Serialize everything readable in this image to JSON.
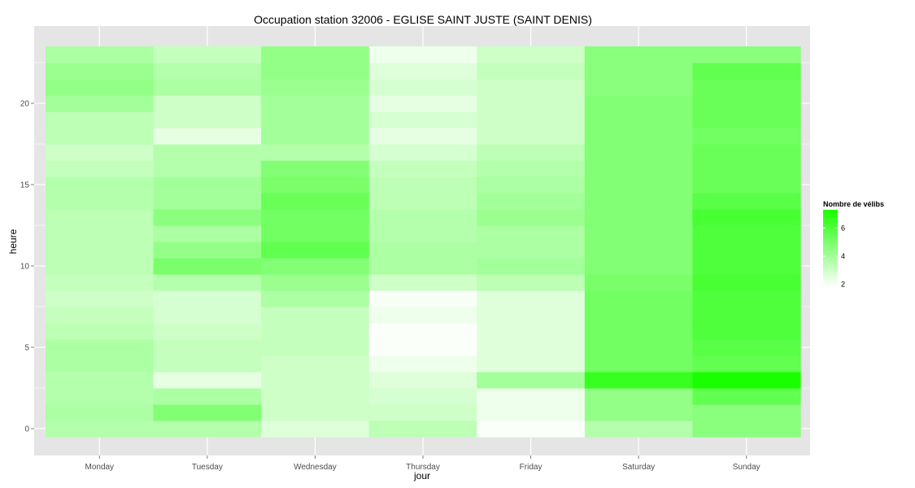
{
  "chart_data": {
    "type": "heatmap",
    "title": "Occupation station 32006 - EGLISE SAINT JUSTE (SAINT DENIS)",
    "xlabel": "jour",
    "ylabel": "heure",
    "x_categories": [
      "Monday",
      "Tuesday",
      "Wednesday",
      "Thursday",
      "Friday",
      "Saturday",
      "Sunday"
    ],
    "y_hours": [
      0,
      1,
      2,
      3,
      4,
      5,
      6,
      7,
      8,
      9,
      10,
      11,
      12,
      13,
      14,
      15,
      16,
      17,
      18,
      19,
      20,
      21,
      22,
      23
    ],
    "y_ticks": [
      0,
      5,
      10,
      15,
      20
    ],
    "y_range": [
      -0.5,
      23.5
    ],
    "legend": {
      "title": "Nombre de vélibs",
      "ticks": [
        2,
        4,
        6
      ],
      "range": [
        1.8,
        7.3
      ],
      "color_low": "#ffffff",
      "color_high": "#1aff00"
    },
    "colors": {
      "panel_background": "#e5e5e5",
      "grid": "#ffffff"
    },
    "grid": true,
    "values": [
      [
        3.6,
        3.8,
        3.6,
        3.6,
        3.8,
        3.8,
        3.4,
        3.2,
        3.0,
        3.2,
        3.4,
        3.4,
        3.4,
        3.4,
        3.6,
        3.6,
        3.2,
        3.0,
        3.4,
        3.4,
        4.0,
        4.4,
        4.2,
        3.8
      ],
      [
        3.6,
        4.8,
        3.8,
        2.4,
        3.2,
        3.2,
        3.0,
        2.8,
        2.8,
        3.6,
        5.0,
        4.4,
        3.8,
        4.6,
        4.0,
        4.0,
        3.6,
        3.6,
        2.4,
        3.0,
        3.0,
        3.8,
        3.6,
        3.2
      ],
      [
        2.6,
        3.0,
        3.0,
        3.0,
        3.0,
        3.2,
        3.2,
        3.2,
        3.8,
        4.2,
        4.8,
        5.6,
        5.2,
        5.2,
        5.4,
        5.0,
        4.8,
        3.6,
        4.0,
        4.0,
        4.0,
        4.2,
        4.4,
        4.4
      ],
      [
        3.4,
        3.0,
        2.8,
        2.6,
        2.2,
        1.9,
        1.9,
        2.2,
        2.0,
        3.0,
        3.8,
        3.8,
        3.6,
        3.6,
        3.4,
        3.4,
        3.2,
        2.8,
        2.4,
        2.8,
        2.4,
        2.8,
        2.6,
        2.2
      ],
      [
        1.9,
        2.2,
        2.2,
        4.0,
        2.6,
        2.6,
        2.6,
        2.6,
        2.6,
        3.4,
        4.0,
        3.8,
        3.8,
        4.2,
        4.0,
        3.8,
        3.6,
        3.4,
        3.0,
        3.0,
        3.0,
        3.0,
        3.2,
        3.0
      ],
      [
        3.6,
        4.4,
        4.4,
        6.6,
        5.2,
        5.2,
        5.2,
        5.2,
        5.2,
        5.0,
        4.8,
        4.8,
        4.8,
        4.8,
        4.8,
        4.8,
        4.8,
        4.8,
        4.8,
        4.8,
        4.8,
        4.6,
        4.6,
        4.6
      ],
      [
        4.6,
        4.6,
        5.6,
        7.3,
        5.6,
        5.8,
        6.0,
        6.0,
        6.0,
        6.2,
        6.0,
        6.0,
        6.0,
        6.2,
        5.8,
        5.4,
        5.4,
        5.4,
        5.2,
        5.4,
        5.4,
        5.4,
        5.6,
        4.6
      ]
    ]
  }
}
